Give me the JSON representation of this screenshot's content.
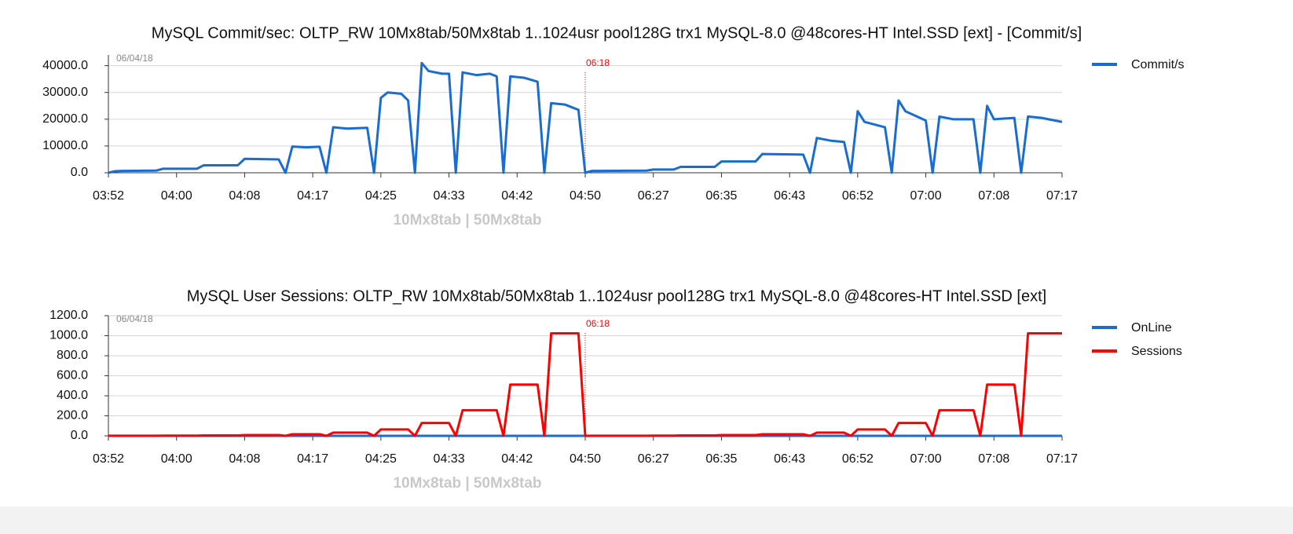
{
  "chart_data": [
    {
      "type": "line",
      "title": "MySQL Commit/sec: OLTP_RW 10Mx8tab/50Mx8tab 1..1024usr pool128G trx1 MySQL-8.0 @48cores-HT Intel.SSD [ext] - [Commit/s]",
      "xlabel": "10Mx8tab | 50Mx8tab",
      "date": "06/04/18",
      "annotation": {
        "x": 70,
        "text": "06:18"
      },
      "xlim": [
        0,
        140
      ],
      "xticks": [
        {
          "value": 0,
          "label": "03:52"
        },
        {
          "value": 10,
          "label": "04:00"
        },
        {
          "value": 20,
          "label": "04:08"
        },
        {
          "value": 30,
          "label": "04:17"
        },
        {
          "value": 40,
          "label": "04:25"
        },
        {
          "value": 50,
          "label": "04:33"
        },
        {
          "value": 60,
          "label": "04:42"
        },
        {
          "value": 70,
          "label": "04:50"
        },
        {
          "value": 80,
          "label": "06:27"
        },
        {
          "value": 90,
          "label": "06:35"
        },
        {
          "value": 100,
          "label": "06:43"
        },
        {
          "value": 110,
          "label": "06:52"
        },
        {
          "value": 120,
          "label": "07:00"
        },
        {
          "value": 130,
          "label": "07:08"
        },
        {
          "value": 140,
          "label": "07:17"
        }
      ],
      "ylim": [
        0,
        44000
      ],
      "yticks": [
        {
          "value": 0,
          "label": "0.0"
        },
        {
          "value": 10000,
          "label": "10000.0"
        },
        {
          "value": 20000,
          "label": "20000.0"
        },
        {
          "value": 30000,
          "label": "30000.0"
        },
        {
          "value": 40000,
          "label": "40000.0"
        }
      ],
      "grid": true,
      "legend": "right",
      "series": [
        {
          "name": "Commit/s",
          "color": "#1a6dd0",
          "x": [
            0,
            1,
            2,
            7,
            8,
            13,
            14,
            19,
            20,
            25,
            26,
            27,
            29,
            31,
            32,
            33,
            35,
            38,
            39,
            40,
            41,
            43,
            44,
            45,
            46,
            47,
            49,
            50,
            51,
            52,
            54,
            56,
            57,
            58,
            59,
            61,
            63,
            64,
            65,
            67,
            69,
            70,
            71,
            79,
            80,
            83,
            84,
            89,
            90,
            95,
            96,
            102,
            103,
            104,
            106,
            108,
            109,
            110,
            111,
            114,
            115,
            116,
            117,
            120,
            121,
            122,
            124,
            127,
            128,
            129,
            130,
            133,
            134,
            135,
            137,
            140
          ],
          "values": [
            0,
            600,
            700,
            800,
            1500,
            1500,
            2800,
            2800,
            5200,
            5000,
            0,
            9800,
            9500,
            9700,
            0,
            17000,
            16500,
            16800,
            0,
            28000,
            30000,
            29500,
            27000,
            0,
            41000,
            38000,
            37000,
            37000,
            0,
            37500,
            36500,
            37000,
            36000,
            0,
            36000,
            35500,
            34000,
            0,
            26000,
            25500,
            23500,
            0,
            700,
            800,
            1200,
            1200,
            2200,
            2200,
            4200,
            4200,
            7000,
            6800,
            0,
            13000,
            12000,
            11500,
            0,
            23000,
            19000,
            17000,
            0,
            27000,
            23000,
            19500,
            0,
            21000,
            20000,
            20000,
            0,
            25000,
            20000,
            20500,
            0,
            21000,
            20500,
            19000
          ]
        }
      ]
    },
    {
      "type": "line",
      "title": "MySQL User Sessions: OLTP_RW 10Mx8tab/50Mx8tab 1..1024usr pool128G trx1 MySQL-8.0 @48cores-HT Intel.SSD [ext]",
      "xlabel": "10Mx8tab | 50Mx8tab",
      "date": "06/04/18",
      "annotation": {
        "x": 70,
        "text": "06:18"
      },
      "xlim": [
        0,
        140
      ],
      "xticks": [
        {
          "value": 0,
          "label": "03:52"
        },
        {
          "value": 10,
          "label": "04:00"
        },
        {
          "value": 20,
          "label": "04:08"
        },
        {
          "value": 30,
          "label": "04:17"
        },
        {
          "value": 40,
          "label": "04:25"
        },
        {
          "value": 50,
          "label": "04:33"
        },
        {
          "value": 60,
          "label": "04:42"
        },
        {
          "value": 70,
          "label": "04:50"
        },
        {
          "value": 80,
          "label": "06:27"
        },
        {
          "value": 90,
          "label": "06:35"
        },
        {
          "value": 100,
          "label": "06:43"
        },
        {
          "value": 110,
          "label": "06:52"
        },
        {
          "value": 120,
          "label": "07:00"
        },
        {
          "value": 130,
          "label": "07:08"
        },
        {
          "value": 140,
          "label": "07:17"
        }
      ],
      "ylim": [
        0,
        1200
      ],
      "yticks": [
        {
          "value": 0,
          "label": "0.0"
        },
        {
          "value": 200,
          "label": "200.0"
        },
        {
          "value": 400,
          "label": "400.0"
        },
        {
          "value": 600,
          "label": "600.0"
        },
        {
          "value": 800,
          "label": "800.0"
        },
        {
          "value": 1000,
          "label": "1000.0"
        },
        {
          "value": 1200,
          "label": "1200.0"
        }
      ],
      "grid": true,
      "legend": "right",
      "series": [
        {
          "name": "OnLine",
          "color": "#1a6dd0",
          "x": [
            0,
            140
          ],
          "values": [
            0,
            0
          ]
        },
        {
          "name": "Sessions",
          "color": "#ff0000",
          "x": [
            0,
            7,
            8,
            13,
            14,
            19,
            20,
            25,
            26,
            27,
            31,
            32,
            33,
            38,
            39,
            40,
            44,
            45,
            46,
            50,
            51,
            52,
            57,
            58,
            59,
            63,
            64,
            65,
            69,
            70,
            71,
            79,
            80,
            83,
            84,
            89,
            90,
            95,
            96,
            102,
            103,
            104,
            108,
            109,
            110,
            114,
            115,
            116,
            120,
            121,
            122,
            127,
            128,
            129,
            133,
            134,
            135,
            140
          ],
          "values": [
            1,
            1,
            2,
            2,
            4,
            4,
            8,
            8,
            0,
            16,
            16,
            0,
            32,
            32,
            0,
            64,
            64,
            0,
            128,
            128,
            0,
            256,
            256,
            0,
            512,
            512,
            0,
            1024,
            1024,
            0,
            1,
            1,
            2,
            2,
            4,
            4,
            8,
            8,
            16,
            16,
            0,
            32,
            32,
            0,
            64,
            64,
            0,
            128,
            128,
            0,
            256,
            256,
            0,
            512,
            512,
            0,
            1024,
            1024
          ]
        }
      ]
    }
  ]
}
